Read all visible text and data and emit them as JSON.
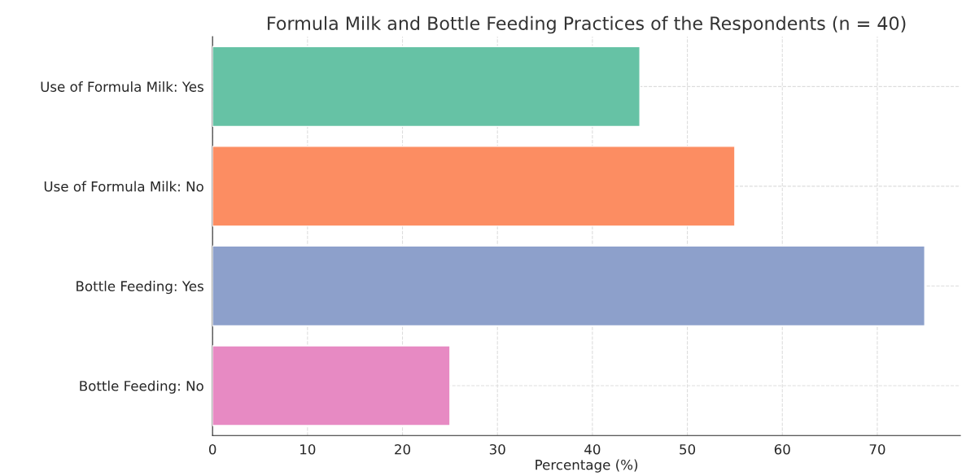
{
  "chart_data": {
    "type": "bar",
    "orientation": "horizontal",
    "title": "Formula Milk and Bottle Feeding Practices of the Respondents (n = 40)",
    "xlabel": "Percentage (%)",
    "categories": [
      "Use of Formula Milk: Yes",
      "Use of Formula Milk: No",
      "Bottle Feeding: Yes",
      "Bottle Feeding: No"
    ],
    "values": [
      45,
      55,
      75,
      25
    ],
    "colors": [
      "#66c2a5",
      "#fc8d62",
      "#8da0cb",
      "#e78ac3"
    ],
    "xlim": [
      0,
      78.75
    ],
    "xticks": [
      0,
      10,
      20,
      30,
      40,
      50,
      60,
      70
    ],
    "grid": true
  }
}
